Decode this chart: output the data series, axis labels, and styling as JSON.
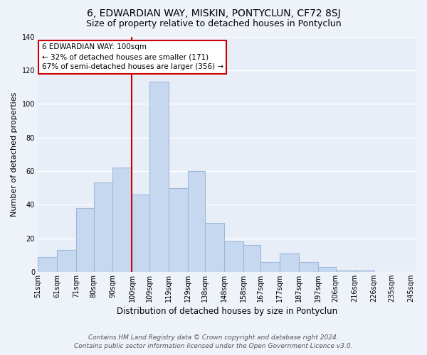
{
  "title": "6, EDWARDIAN WAY, MISKIN, PONTYCLUN, CF72 8SJ",
  "subtitle": "Size of property relative to detached houses in Pontyclun",
  "xlabel": "Distribution of detached houses by size in Pontyclun",
  "ylabel": "Number of detached properties",
  "bar_values": [
    9,
    13,
    38,
    53,
    62,
    46,
    113,
    50,
    60,
    29,
    18,
    16,
    6,
    11,
    6,
    3,
    1,
    1
  ],
  "all_edges": [
    51,
    61,
    71,
    80,
    90,
    100,
    109,
    119,
    129,
    138,
    148,
    158,
    167,
    177,
    187,
    197,
    206,
    216,
    226
  ],
  "xtick_positions": [
    51,
    61,
    71,
    80,
    90,
    100,
    109,
    119,
    129,
    138,
    148,
    158,
    167,
    177,
    187,
    197,
    206,
    216,
    226,
    235,
    245
  ],
  "xtick_labels": [
    "51sqm",
    "61sqm",
    "71sqm",
    "80sqm",
    "90sqm",
    "100sqm",
    "109sqm",
    "119sqm",
    "129sqm",
    "138sqm",
    "148sqm",
    "158sqm",
    "167sqm",
    "177sqm",
    "187sqm",
    "197sqm",
    "206sqm",
    "216sqm",
    "226sqm",
    "235sqm",
    "245sqm"
  ],
  "bar_color": "#c5d8f0",
  "bar_edge_color": "#a0b8d8",
  "highlight_line_x": 100,
  "annotation_line1": "6 EDWARDIAN WAY: 100sqm",
  "annotation_line2": "← 32% of detached houses are smaller (171)",
  "annotation_line3": "67% of semi-detached houses are larger (356) →",
  "annotation_box_color": "#ffffff",
  "annotation_box_edge_color": "#cc0000",
  "vline_color": "#cc0000",
  "xlim": [
    51,
    248
  ],
  "ylim": [
    0,
    140
  ],
  "yticks": [
    0,
    20,
    40,
    60,
    80,
    100,
    120,
    140
  ],
  "footer_line1": "Contains HM Land Registry data © Crown copyright and database right 2024.",
  "footer_line2": "Contains public sector information licensed under the Open Government Licence v3.0.",
  "background_color": "#eef2f9",
  "plot_bg_color": "#e8eef8",
  "grid_color": "#ffffff",
  "title_fontsize": 10,
  "subtitle_fontsize": 9,
  "xlabel_fontsize": 8.5,
  "ylabel_fontsize": 8,
  "tick_fontsize": 7,
  "annotation_fontsize": 7.5,
  "footer_fontsize": 6.5
}
